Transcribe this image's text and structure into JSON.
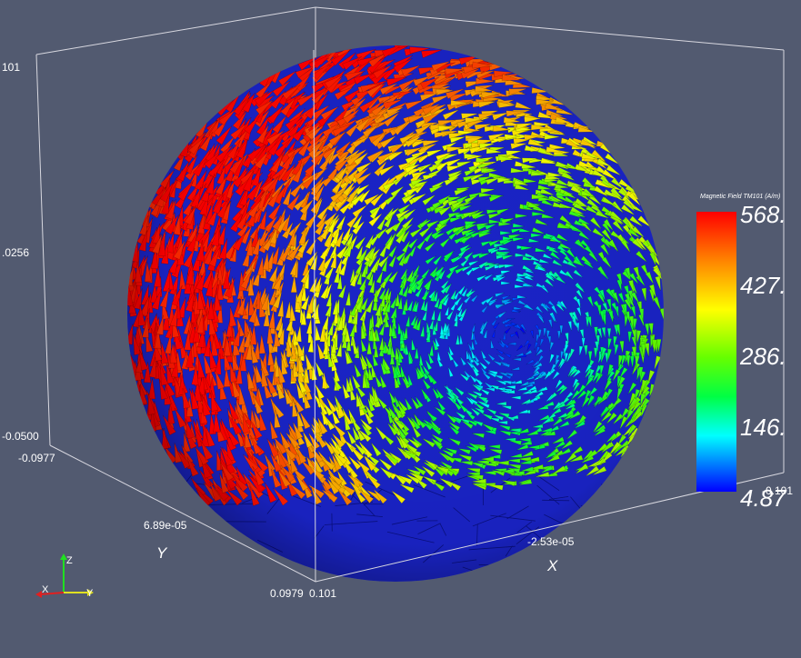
{
  "axes": {
    "z_ticks": [
      "101",
      ".0256",
      "-0.0500"
    ],
    "y_ticks": [
      "-0.0977",
      "6.89e-05",
      "0.0979"
    ],
    "x_ticks": [
      "0.101",
      "-2.53e-05",
      "-0.101"
    ],
    "x_title": "X",
    "y_title": "Y"
  },
  "colorbar": {
    "title": "Magnetic Field TM101 (A/m)",
    "labels": [
      "568.",
      "427.",
      "286.",
      "146.",
      "4.87"
    ],
    "stops": [
      "#ff0000",
      "#ff8800",
      "#ffff00",
      "#88ff00",
      "#00ff00",
      "#00ffff",
      "#0000ff"
    ]
  },
  "orientation": {
    "x": "X",
    "y": "Y",
    "z": "Z"
  },
  "colors": {
    "background": "#525a70",
    "mesh": "#1a24c8"
  }
}
